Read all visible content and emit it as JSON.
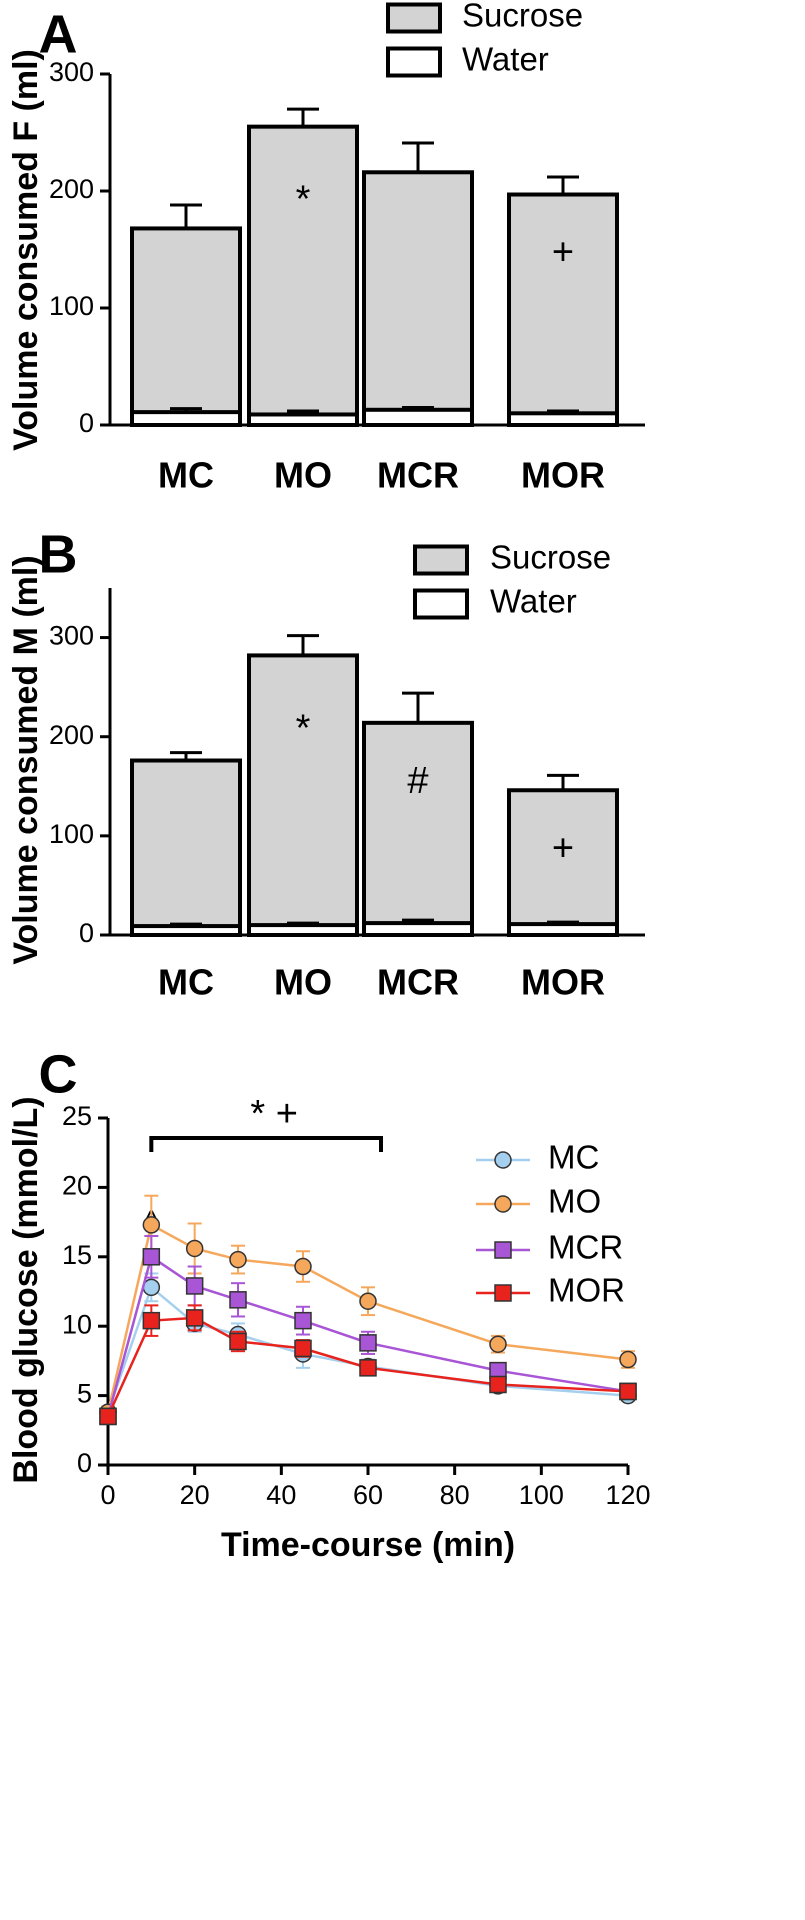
{
  "chart_data": [
    {
      "panel": "A",
      "type": "bar",
      "stacked": true,
      "ylabel": "Volume consumed F (ml)",
      "ylim": [
        0,
        300
      ],
      "yticks": [
        0,
        100,
        200,
        300
      ],
      "categories": [
        "MC",
        "MO",
        "MCR",
        "MOR"
      ],
      "series": [
        {
          "name": "Sucrose",
          "color": "#d3d3d3",
          "totals": [
            168,
            255,
            216,
            197
          ],
          "error": [
            20,
            15,
            25,
            15
          ]
        },
        {
          "name": "Water",
          "color": "#ffffff",
          "values": [
            11,
            9,
            13,
            10
          ],
          "error": [
            3,
            3,
            2,
            2
          ]
        }
      ],
      "annotations": [
        "",
        "*",
        "",
        "+"
      ],
      "legend": [
        "Sucrose",
        "Water"
      ],
      "legend_position": "top-right"
    },
    {
      "panel": "B",
      "type": "bar",
      "stacked": true,
      "ylabel": "Volume consumed M (ml)",
      "ylim": [
        0,
        350
      ],
      "yticks": [
        0,
        100,
        200,
        300
      ],
      "categories": [
        "MC",
        "MO",
        "MCR",
        "MOR"
      ],
      "series": [
        {
          "name": "Sucrose",
          "color": "#d3d3d3",
          "totals": [
            176,
            282,
            214,
            146
          ],
          "error": [
            8,
            20,
            30,
            15
          ]
        },
        {
          "name": "Water",
          "color": "#ffffff",
          "values": [
            9,
            10,
            12,
            11
          ],
          "error": [
            2,
            2,
            3,
            2
          ]
        }
      ],
      "annotations": [
        "",
        "*",
        "#",
        "+"
      ],
      "legend": [
        "Sucrose",
        "Water"
      ],
      "legend_position": "top-right"
    },
    {
      "panel": "C",
      "type": "line",
      "ylabel": "Blood glucose (mmol/L)",
      "xlabel": "Time-course (min)",
      "xlim": [
        0,
        120
      ],
      "ylim": [
        0,
        25
      ],
      "xticks": [
        0,
        20,
        40,
        60,
        80,
        100,
        120
      ],
      "yticks": [
        0,
        5,
        10,
        15,
        20,
        25
      ],
      "x": [
        0,
        10,
        20,
        30,
        45,
        60,
        90,
        120
      ],
      "series": [
        {
          "name": "MC",
          "color": "#a4cfee",
          "marker": "circle",
          "values": [
            3.8,
            12.8,
            10.2,
            9.4,
            8.0,
            7.1,
            5.7,
            5.0
          ],
          "error": [
            0.4,
            1.0,
            0.6,
            0.8,
            1.0,
            0.5,
            0.4,
            0.3
          ]
        },
        {
          "name": "MO",
          "color": "#f5a85c",
          "marker": "circle",
          "values": [
            3.8,
            17.3,
            15.6,
            14.8,
            14.3,
            11.8,
            8.7,
            7.6
          ],
          "error": [
            0.4,
            2.1,
            1.8,
            1.0,
            1.1,
            1.0,
            0.6,
            0.6
          ]
        },
        {
          "name": "MCR",
          "color": "#a855d6",
          "marker": "square",
          "values": [
            3.5,
            15.0,
            12.9,
            11.9,
            10.4,
            8.8,
            6.8,
            5.3
          ],
          "error": [
            0.4,
            1.5,
            1.4,
            1.2,
            1.0,
            0.8,
            0.5,
            0.3
          ]
        },
        {
          "name": "MOR",
          "color": "#e8231d",
          "marker": "square",
          "values": [
            3.5,
            10.4,
            10.6,
            8.9,
            8.4,
            7.0,
            5.8,
            5.3
          ],
          "error": [
            0.4,
            1.1,
            0.9,
            0.7,
            0.6,
            0.5,
            0.3,
            0.3
          ]
        }
      ],
      "bracket": {
        "from": 10,
        "to": 63,
        "label": "* +"
      },
      "peak_annotation": {
        "x": 10,
        "label": "^"
      },
      "legend": [
        "MC",
        "MO",
        "MCR",
        "MOR"
      ],
      "legend_position": "top-right"
    }
  ]
}
